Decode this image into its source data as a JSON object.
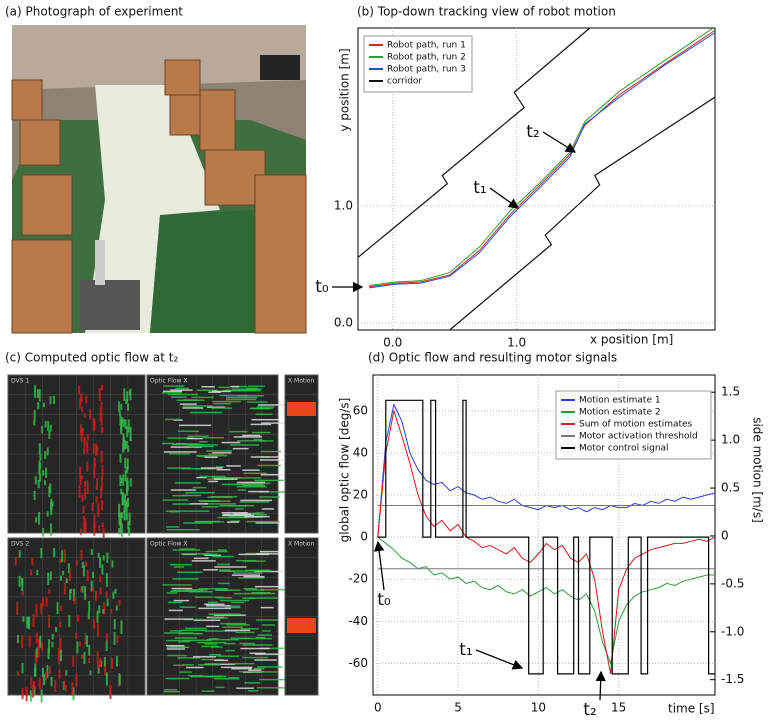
{
  "photo": {
    "title": "(a) Photograph of experiment"
  },
  "optic_flow_view": {
    "title": "(c) Computed optic flow at t₂",
    "labels": [
      "DVS 1",
      "Optic Flow X",
      "X Motion",
      "DVS 2",
      "Optic Flow X",
      "X Motion"
    ]
  },
  "chart_data": [
    {
      "type": "line",
      "title": "(b) Top-down tracking view of robot motion",
      "xlabel": "x position [m]",
      "ylabel": "y position [m]",
      "xlim": [
        -0.28,
        2.6
      ],
      "ylim": [
        -0.06,
        2.52
      ],
      "xticks": [
        {
          "value": 0,
          "label": "0.0"
        },
        {
          "value": 1,
          "label": "1.0"
        }
      ],
      "yticks": [
        {
          "value": 0,
          "label": "0.0"
        },
        {
          "value": 1,
          "label": "1.0"
        }
      ],
      "grid": true,
      "legend": "upper left",
      "annotations": [
        "t₀",
        "t₁",
        "t₂"
      ],
      "series": [
        {
          "name": "Robot path, run 1",
          "color": "#d62728",
          "x": [
            -0.19,
            0.02,
            0.22,
            0.46,
            0.7,
            0.94,
            1.19,
            1.43,
            1.55,
            1.83,
            2.19,
            2.6
          ],
          "values": [
            0.31,
            0.34,
            0.35,
            0.41,
            0.62,
            0.92,
            1.18,
            1.44,
            1.69,
            1.95,
            2.21,
            2.5
          ]
        },
        {
          "name": "Robot path, run 2",
          "color": "#2ca02c",
          "x": [
            -0.19,
            0.02,
            0.22,
            0.46,
            0.7,
            0.94,
            1.19,
            1.43,
            1.55,
            1.83,
            2.19,
            2.6
          ],
          "values": [
            0.32,
            0.35,
            0.36,
            0.43,
            0.65,
            0.95,
            1.2,
            1.46,
            1.72,
            1.98,
            2.24,
            2.53
          ]
        },
        {
          "name": "Robot path, run 3",
          "color": "#1f4fd6",
          "x": [
            -0.19,
            0.02,
            0.22,
            0.46,
            0.7,
            0.94,
            1.19,
            1.43,
            1.55,
            1.83,
            2.19,
            2.6
          ],
          "values": [
            0.3,
            0.33,
            0.34,
            0.4,
            0.6,
            0.9,
            1.16,
            1.42,
            1.7,
            1.93,
            2.2,
            2.48
          ]
        },
        {
          "name": "corridor",
          "color": "#111111",
          "x": [
            -0.28,
            0.44,
            0.4,
            1.06,
            0.98,
            1.59,
            null,
            0.46,
            1.28,
            1.23,
            1.67,
            1.63,
            2.6
          ],
          "values": [
            0.56,
            1.19,
            1.26,
            1.84,
            1.97,
            2.52,
            null,
            -0.06,
            0.67,
            0.75,
            1.18,
            1.26,
            1.93
          ]
        }
      ]
    },
    {
      "type": "line",
      "title": "(d) Optic flow and resulting motor signals",
      "xlabel": "time [s]",
      "ylabel": "global optic flow [deg/s]",
      "y2label": "side motion [m/s]",
      "xlim": [
        -0.3,
        21
      ],
      "ylim": [
        -75,
        77
      ],
      "y2lim": [
        -1.66,
        1.68
      ],
      "xticks": [
        0,
        5,
        10,
        15
      ],
      "yticks": [
        -60,
        -40,
        -20,
        0,
        20,
        40,
        60
      ],
      "y2ticks": [
        -1.5,
        {
          "value": -1,
          "label": "-1.0"
        },
        -0.5,
        0,
        0.5,
        {
          "value": 1,
          "label": "1.0"
        },
        1.5
      ],
      "grid": true,
      "legend": "upper right",
      "annotations": [
        "t₀",
        "t₁",
        "t₂"
      ],
      "x": [
        0,
        0.5,
        1,
        1.5,
        2,
        2.5,
        3,
        3.5,
        4,
        4.5,
        5,
        5.5,
        6,
        6.5,
        7,
        7.5,
        8,
        8.5,
        9,
        9.5,
        10,
        10.5,
        11,
        11.5,
        12,
        12.5,
        13,
        13.5,
        14,
        14.5,
        15,
        15.5,
        16,
        16.5,
        17,
        17.5,
        18,
        18.5,
        19,
        19.5,
        20,
        20.5,
        21
      ],
      "series": [
        {
          "name": "Motion estimate 1",
          "color": "#2b3fd1",
          "values": [
            0,
            45,
            63,
            55,
            40,
            32,
            27,
            25,
            26,
            22,
            24,
            21,
            20,
            18,
            19,
            17,
            16,
            18,
            15,
            14,
            13,
            15,
            14,
            15,
            13,
            14,
            12,
            14,
            13,
            15,
            14,
            14,
            16,
            15,
            17,
            16,
            18,
            17,
            19,
            18,
            19,
            20,
            21
          ]
        },
        {
          "name": "Motion estimate 2",
          "color": "#2e9a3a",
          "values": [
            0,
            -3,
            -6,
            -10,
            -12,
            -15,
            -14,
            -18,
            -17,
            -20,
            -19,
            -22,
            -21,
            -24,
            -25,
            -23,
            -26,
            -27,
            -25,
            -28,
            -26,
            -24,
            -27,
            -25,
            -28,
            -30,
            -27,
            -35,
            -50,
            -60,
            -40,
            -32,
            -28,
            -26,
            -25,
            -24,
            -22,
            -23,
            -21,
            -20,
            -19,
            -18,
            -18
          ]
        },
        {
          "name": "Sum of motion estimates",
          "color": "#d01c1c",
          "values": [
            0,
            40,
            60,
            48,
            35,
            20,
            10,
            5,
            8,
            3,
            6,
            0,
            -2,
            -5,
            -4,
            -6,
            -8,
            -5,
            -10,
            -12,
            -8,
            -3,
            -6,
            -4,
            -10,
            -12,
            -8,
            -20,
            -45,
            -65,
            -25,
            -15,
            -10,
            -8,
            -6,
            -5,
            -4,
            -3,
            -3,
            -2,
            -1,
            -2,
            0
          ]
        },
        {
          "name": "Motor activation threshold",
          "color": "#777777",
          "x": [
            0,
            21,
            null,
            0,
            21
          ],
          "values": [
            15,
            15,
            null,
            -15,
            -15
          ]
        },
        {
          "name": "Motor control signal",
          "color": "#000000",
          "x": [
            0,
            0.5,
            0.5,
            2.8,
            2.8,
            3.3,
            3.3,
            3.6,
            3.6,
            5.3,
            5.3,
            5.5,
            5.5,
            9.4,
            9.4,
            10.3,
            10.3,
            11.2,
            11.2,
            12.2,
            12.2,
            12.5,
            12.5,
            13.2,
            13.2,
            14.6,
            14.6,
            15.6,
            15.6,
            16.4,
            16.4,
            16.8,
            16.8,
            20.6,
            20.6,
            21
          ],
          "values": [
            0,
            0,
            65,
            65,
            0,
            0,
            65,
            65,
            0,
            0,
            65,
            65,
            0,
            0,
            -65,
            -65,
            0,
            0,
            -65,
            -65,
            0,
            0,
            -65,
            -65,
            0,
            0,
            -65,
            -65,
            0,
            0,
            -65,
            -65,
            0,
            0,
            -65,
            -65
          ]
        }
      ]
    }
  ]
}
